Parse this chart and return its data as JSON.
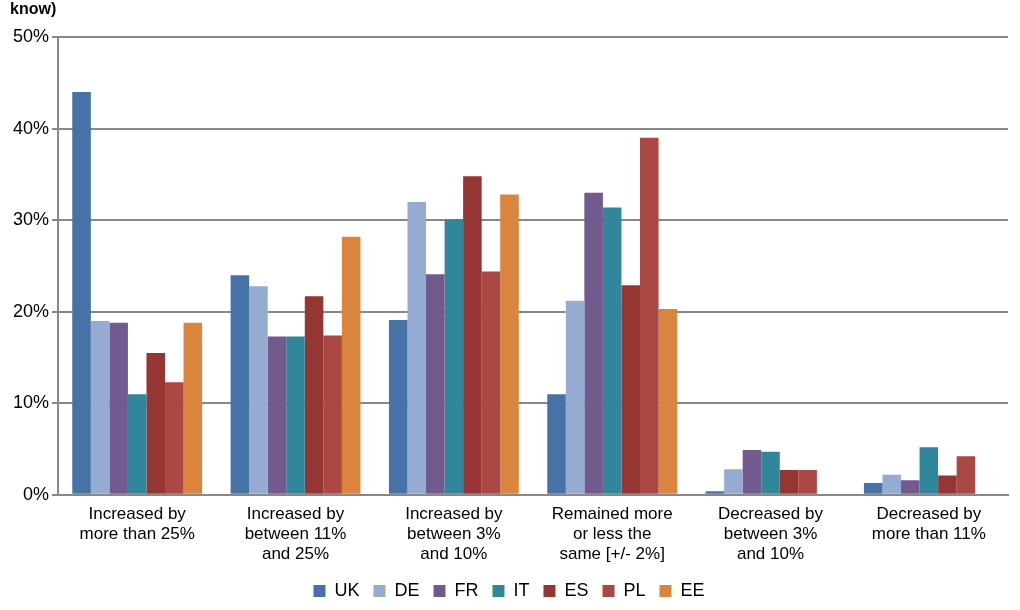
{
  "chart_data": {
    "type": "bar",
    "title": "know)",
    "categories": [
      "Increased by more than 25%",
      "Increased by between 11% and 25%",
      "Increased by between 3% and 10%",
      "Remained more or less the same [+/- 2%]",
      "Decreased by between 3% and 10%",
      "Decreased by more than 11%"
    ],
    "series": [
      {
        "name": "UK",
        "color": "#4672a8",
        "values": [
          44,
          24,
          19.1,
          11,
          0.4,
          1.3
        ]
      },
      {
        "name": "DE",
        "color": "#95abd2",
        "values": [
          19,
          22.8,
          32,
          21.2,
          2.8,
          2.2
        ]
      },
      {
        "name": "FR",
        "color": "#725a8f",
        "values": [
          18.8,
          17.3,
          24.1,
          33,
          4.9,
          1.6
        ]
      },
      {
        "name": "IT",
        "color": "#31869b",
        "values": [
          11,
          17.3,
          30.1,
          31.4,
          4.7,
          5.2
        ]
      },
      {
        "name": "ES",
        "color": "#963634",
        "values": [
          15.5,
          21.7,
          34.8,
          22.9,
          2.7,
          2.1
        ]
      },
      {
        "name": "PL",
        "color": "#ab4745",
        "values": [
          12.3,
          17.4,
          24.4,
          39,
          2.7,
          4.2
        ]
      },
      {
        "name": "EE",
        "color": "#db843d",
        "values": [
          18.8,
          28.2,
          32.8,
          20.3,
          null,
          null
        ]
      }
    ],
    "ylim": [
      0,
      50
    ],
    "yticks": [
      {
        "value": 0,
        "label": "0%"
      },
      {
        "value": 10,
        "label": "10%"
      },
      {
        "value": 20,
        "label": "20%"
      },
      {
        "value": 30,
        "label": "30%"
      },
      {
        "value": 40,
        "label": "40%"
      },
      {
        "value": 50,
        "label": "50%"
      }
    ],
    "grid": "y",
    "legend": "bottom"
  }
}
